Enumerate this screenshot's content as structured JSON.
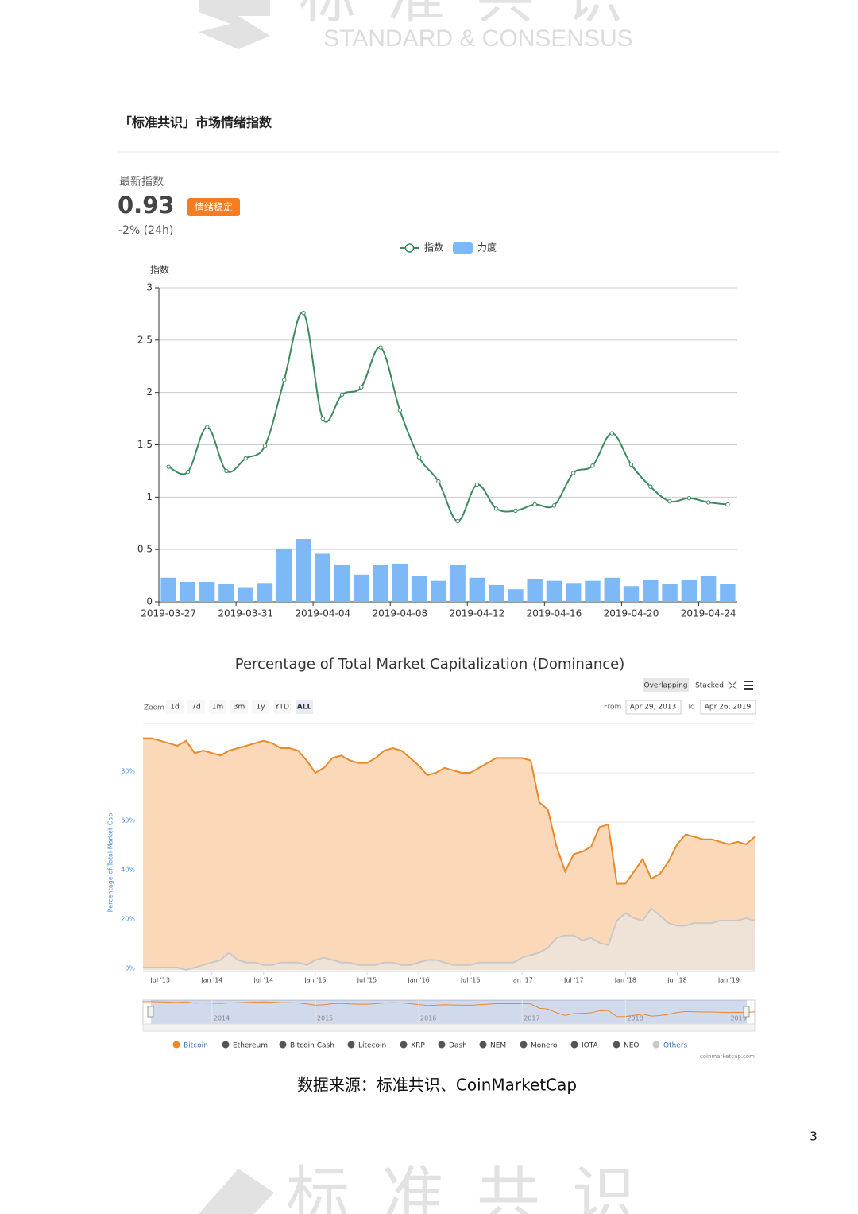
{
  "watermark": {
    "cn": "标准共识",
    "en": "STANDARD & CONSENSUS"
  },
  "header": {
    "title": "「标准共识」市场情绪指数"
  },
  "index_box": {
    "label": "最新指数",
    "value": "0.93",
    "badge": "情绪稳定",
    "change": "-2% (24h)"
  },
  "chart_data": [
    {
      "type": "combo",
      "y_label": "指数",
      "categories": [
        "2019-03-27",
        null,
        null,
        null,
        "2019-03-31",
        null,
        null,
        null,
        "2019-04-04",
        null,
        null,
        null,
        "2019-04-08",
        null,
        null,
        null,
        "2019-04-12",
        null,
        null,
        null,
        "2019-04-16",
        null,
        null,
        null,
        "2019-04-20",
        null,
        null,
        null,
        "2019-04-24",
        null
      ],
      "series": [
        {
          "name": "指数",
          "type": "line",
          "color": "#3d8a5f",
          "values": [
            1.29,
            1.24,
            1.67,
            1.25,
            1.37,
            1.49,
            2.12,
            2.76,
            1.75,
            1.98,
            2.05,
            2.43,
            1.83,
            1.38,
            1.15,
            0.77,
            1.12,
            0.89,
            0.87,
            0.93,
            0.92,
            1.23,
            1.3,
            1.61,
            1.31,
            1.1,
            0.96,
            0.99,
            0.95,
            0.93
          ]
        },
        {
          "name": "力度",
          "type": "bar",
          "color": "#7db9f7",
          "values": [
            0.23,
            0.19,
            0.19,
            0.17,
            0.14,
            0.18,
            0.51,
            0.6,
            0.46,
            0.35,
            0.26,
            0.35,
            0.36,
            0.25,
            0.2,
            0.35,
            0.23,
            0.16,
            0.12,
            0.22,
            0.2,
            0.18,
            0.2,
            0.23,
            0.15,
            0.21,
            0.17,
            0.21,
            0.25,
            0.17
          ]
        }
      ],
      "ylim": [
        0,
        3
      ],
      "yticks": [
        0,
        0.5,
        1,
        1.5,
        2,
        2.5,
        3
      ],
      "grid": true,
      "legend": "top"
    },
    {
      "type": "area",
      "title": "Percentage of Total Market Capitalization (Dominance)",
      "y_label": "Percentage of Total Market Cap",
      "view_buttons": [
        "Overlapping",
        "Stacked"
      ],
      "view_selected": "Overlapping",
      "range_selector": {
        "label": "Zoom",
        "buttons": [
          "1d",
          "7d",
          "1m",
          "3m",
          "1y",
          "YTD",
          "ALL"
        ],
        "selected": "ALL"
      },
      "from_label": "From",
      "from": "Apr 29, 2013",
      "to_label": "To",
      "to": "Apr 26, 2019",
      "x": [
        "2013-05",
        "2013-06",
        "2013-07",
        "2013-08",
        "2013-09",
        "2013-10",
        "2013-11",
        "2013-12",
        "2014-01",
        "2014-02",
        "2014-03",
        "2014-04",
        "2014-05",
        "2014-06",
        "2014-07",
        "2014-08",
        "2014-09",
        "2014-10",
        "2014-11",
        "2014-12",
        "2015-01",
        "2015-02",
        "2015-03",
        "2015-04",
        "2015-05",
        "2015-06",
        "2015-07",
        "2015-08",
        "2015-09",
        "2015-10",
        "2015-11",
        "2015-12",
        "2016-01",
        "2016-02",
        "2016-03",
        "2016-04",
        "2016-05",
        "2016-06",
        "2016-07",
        "2016-08",
        "2016-09",
        "2016-10",
        "2016-11",
        "2016-12",
        "2017-01",
        "2017-02",
        "2017-03",
        "2017-04",
        "2017-05",
        "2017-06",
        "2017-07",
        "2017-08",
        "2017-09",
        "2017-10",
        "2017-11",
        "2017-12",
        "2018-01",
        "2018-02",
        "2018-03",
        "2018-04",
        "2018-05",
        "2018-06",
        "2018-07",
        "2018-08",
        "2018-09",
        "2018-10",
        "2018-11",
        "2018-12",
        "2019-01",
        "2019-02",
        "2019-03",
        "2019-04"
      ],
      "series": [
        {
          "name": "Bitcoin",
          "color": "#e8892b",
          "fill": "#fbd9b8",
          "values": [
            94,
            94,
            93,
            92,
            91,
            93,
            88,
            89,
            88,
            87,
            89,
            90,
            91,
            92,
            93,
            92,
            90,
            90,
            89,
            85,
            80,
            82,
            86,
            87,
            85,
            84,
            84,
            86,
            89,
            90,
            89,
            86,
            83,
            79,
            80,
            82,
            81,
            80,
            80,
            82,
            84,
            86,
            86,
            86,
            86,
            85,
            68,
            65,
            50,
            40,
            47,
            48,
            50,
            58,
            59,
            35,
            35,
            40,
            45,
            37,
            39,
            44,
            51,
            55,
            54,
            53,
            53,
            52,
            51,
            52,
            51,
            54
          ]
        },
        {
          "name": "Others",
          "color": "#c8c8c8",
          "fill": "#efe3d8",
          "values": [
            1,
            1,
            1,
            1,
            1,
            0,
            1,
            2,
            3,
            4,
            7,
            4,
            3,
            3,
            2,
            2,
            3,
            3,
            3,
            2,
            4,
            5,
            4,
            3,
            3,
            2,
            2,
            2,
            3,
            3,
            2,
            2,
            3,
            4,
            4,
            3,
            2,
            2,
            2,
            3,
            3,
            3,
            3,
            3,
            5,
            6,
            7,
            9,
            13,
            14,
            14,
            12,
            13,
            11,
            10,
            20,
            23,
            21,
            20,
            25,
            22,
            19,
            18,
            18,
            19,
            19,
            19,
            20,
            20,
            20,
            21,
            20
          ]
        }
      ],
      "hidden_series": [
        {
          "name": "Ethereum",
          "color": "#555555"
        },
        {
          "name": "Bitcoin Cash",
          "color": "#555555"
        },
        {
          "name": "Litecoin",
          "color": "#555555"
        },
        {
          "name": "XRP",
          "color": "#555555"
        },
        {
          "name": "Dash",
          "color": "#555555"
        },
        {
          "name": "NEM",
          "color": "#555555"
        },
        {
          "name": "Monero",
          "color": "#555555"
        },
        {
          "name": "IOTA",
          "color": "#555555"
        },
        {
          "name": "NEO",
          "color": "#555555"
        }
      ],
      "xlim": [
        "2013-05",
        "2019-04"
      ],
      "xticks": [
        {
          "value": "2013-07",
          "label": "Jul '13"
        },
        {
          "value": "2014-01",
          "label": "Jan '14"
        },
        {
          "value": "2014-07",
          "label": "Jul '14"
        },
        {
          "value": "2015-01",
          "label": "Jan '15"
        },
        {
          "value": "2015-07",
          "label": "Jul '15"
        },
        {
          "value": "2016-01",
          "label": "Jan '16"
        },
        {
          "value": "2016-07",
          "label": "Jul '16"
        },
        {
          "value": "2017-01",
          "label": "Jan '17"
        },
        {
          "value": "2017-07",
          "label": "Jul '17"
        },
        {
          "value": "2018-01",
          "label": "Jan '18"
        },
        {
          "value": "2018-07",
          "label": "Jul '18"
        },
        {
          "value": "2019-01",
          "label": "Jan '19"
        }
      ],
      "navigator_ticks": [
        {
          "value": "2014-01",
          "label": "2014"
        },
        {
          "value": "2015-01",
          "label": "2015"
        },
        {
          "value": "2016-01",
          "label": "2016"
        },
        {
          "value": "2017-01",
          "label": "2017"
        },
        {
          "value": "2018-01",
          "label": "2018"
        },
        {
          "value": "2019-01",
          "label": "2019"
        }
      ],
      "ylim": [
        0,
        100
      ],
      "yticks": [
        {
          "value": 0,
          "label": "0%"
        },
        {
          "value": 20,
          "label": "20%"
        },
        {
          "value": 40,
          "label": "40%"
        },
        {
          "value": 60,
          "label": "60%"
        },
        {
          "value": 80,
          "label": "80%"
        }
      ],
      "grid": true,
      "legend": "bottom",
      "credit": "coinmarketcap.com"
    }
  ],
  "caption": "数据来源：标准共识、CoinMarketCap",
  "page_number": "3"
}
